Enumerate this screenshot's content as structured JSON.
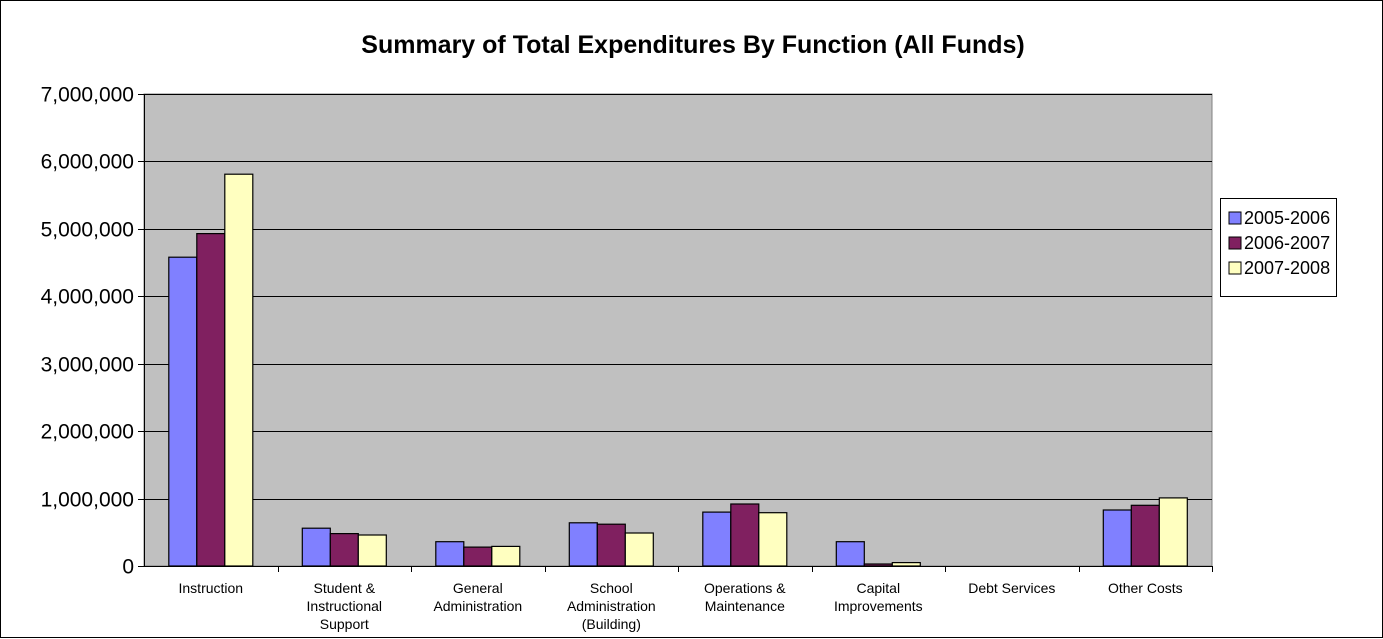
{
  "chart_data": {
    "type": "bar",
    "title": "Summary of Total Expenditures By Function (All Funds)",
    "xlabel": "",
    "ylabel": "",
    "ylim": [
      0,
      7000000
    ],
    "yticks": [
      "0",
      "1,000,000",
      "2,000,000",
      "3,000,000",
      "4,000,000",
      "5,000,000",
      "6,000,000",
      "7,000,000"
    ],
    "grid": true,
    "legend_position": "right",
    "plot_background": "#c0c0c0",
    "categories": [
      [
        "Instruction"
      ],
      [
        "Student &",
        "Instructional",
        "Support"
      ],
      [
        "General",
        "Administration"
      ],
      [
        "School",
        "Administration",
        "(Building)"
      ],
      [
        "Operations &",
        "Maintenance"
      ],
      [
        "Capital",
        "Improvements"
      ],
      [
        "Debt Services"
      ],
      [
        "Other Costs"
      ]
    ],
    "series": [
      {
        "name": "2005-2006",
        "color": "#8080ff",
        "values": [
          4580000,
          560000,
          360000,
          640000,
          800000,
          360000,
          0,
          830000
        ]
      },
      {
        "name": "2006-2007",
        "color": "#802060",
        "values": [
          4930000,
          480000,
          280000,
          620000,
          920000,
          30000,
          0,
          900000
        ]
      },
      {
        "name": "2007-2008",
        "color": "#ffffc0",
        "values": [
          5810000,
          460000,
          290000,
          490000,
          790000,
          50000,
          0,
          1010000
        ]
      }
    ]
  }
}
